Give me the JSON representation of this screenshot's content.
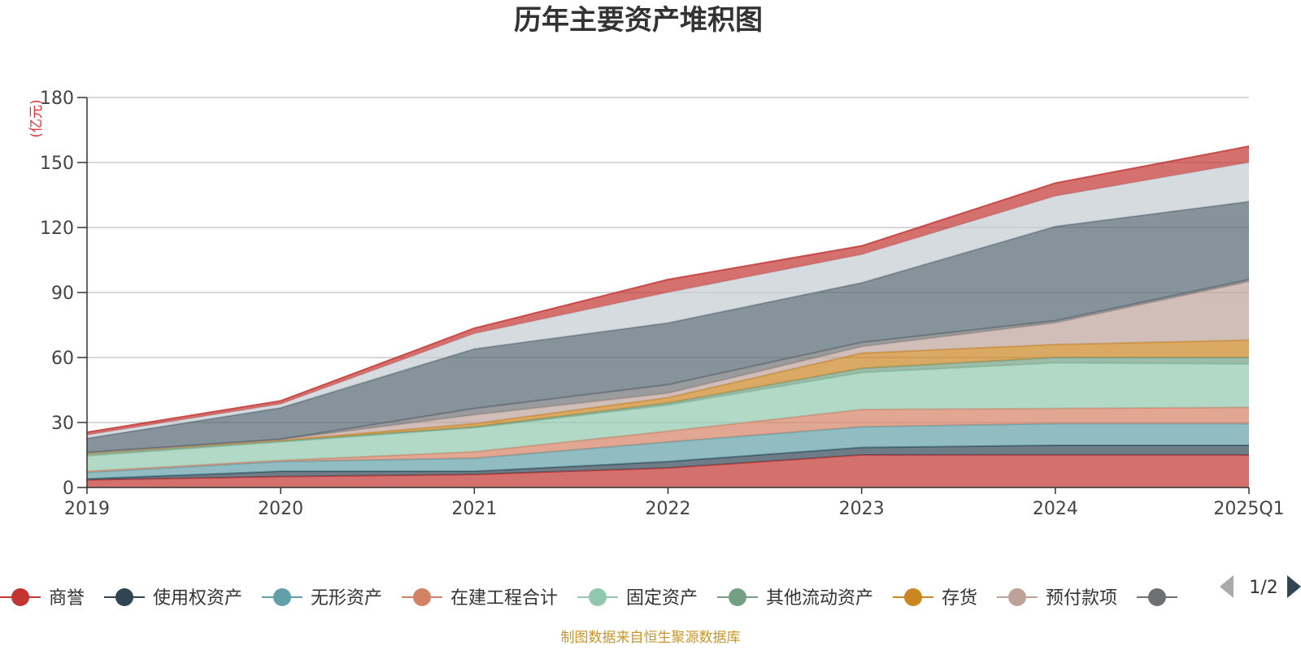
{
  "chart_data": {
    "type": "area",
    "title": "历年主要资产堆积图",
    "unit_label": "(亿元)",
    "source_note": "制图数据来自恒生聚源数据库",
    "x": [
      "2019",
      "2020",
      "2021",
      "2022",
      "2023",
      "2024",
      "2025Q1"
    ],
    "ylim": [
      0,
      180
    ],
    "yticks": [
      0,
      30,
      60,
      90,
      120,
      150,
      180
    ],
    "grid": true,
    "legend_position": "bottom",
    "legend_page": "1/2",
    "series": [
      {
        "name": "商誉",
        "color": "#c23531",
        "values": [
          3.5,
          5,
          6,
          9,
          15,
          15,
          15
        ]
      },
      {
        "name": "使用权资产",
        "color": "#2f4554",
        "values": [
          0.5,
          2.5,
          1.5,
          3,
          3.5,
          4.5,
          4.5
        ]
      },
      {
        "name": "无形资产",
        "color": "#61a0a8",
        "values": [
          3,
          4.5,
          6,
          9,
          9.5,
          10,
          10
        ]
      },
      {
        "name": "在建工程合计",
        "color": "#d48265",
        "values": [
          0.5,
          0.5,
          3,
          5,
          8,
          7,
          7.5
        ]
      },
      {
        "name": "固定资产",
        "color": "#91c7ae",
        "values": [
          7,
          8.5,
          11,
          12,
          17,
          21,
          20
        ]
      },
      {
        "name": "其他流动资产",
        "color": "#749f83",
        "values": [
          1,
          0.5,
          0.5,
          1,
          2,
          2.5,
          3
        ]
      },
      {
        "name": "存货",
        "color": "#ca8622",
        "values": [
          0.3,
          0.3,
          1.5,
          2.5,
          7,
          6,
          8
        ]
      },
      {
        "name": "预付款项",
        "color": "#bda29a",
        "values": [
          0.2,
          0.3,
          4,
          2,
          3,
          10,
          27
        ]
      },
      {
        "name": "",
        "color": "#6e7074",
        "values": [
          0.2,
          0.2,
          3,
          4,
          2,
          1,
          1
        ]
      },
      {
        "name": "",
        "color": "#546570",
        "values": [
          6.5,
          14.5,
          27.5,
          28.5,
          27.5,
          43.5,
          36
        ]
      },
      {
        "name": "",
        "color": "#c4ccd3",
        "values": [
          1.5,
          1.7,
          7,
          14,
          13,
          14,
          18
        ]
      },
      {
        "name": "",
        "color": "#c23531",
        "values": [
          1.3,
          1.5,
          2.5,
          6,
          4,
          6,
          7.5
        ]
      }
    ]
  }
}
